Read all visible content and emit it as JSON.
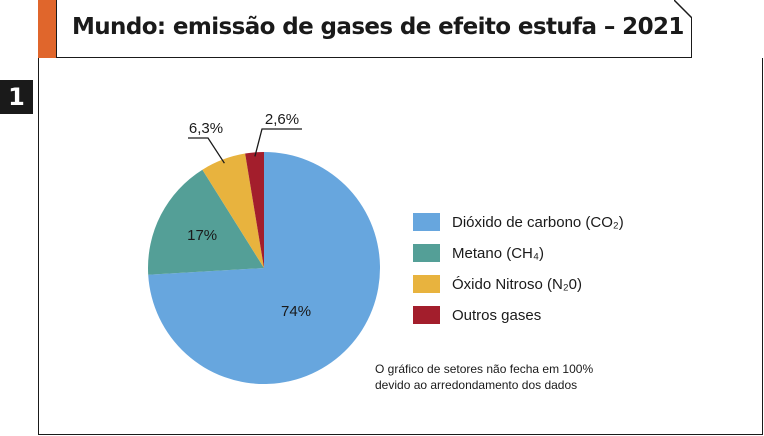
{
  "chart_data": {
    "type": "pie",
    "title": "Mundo: emissão de gases de efeito estufa – 2021",
    "categories": [
      "Dióxido de carbono (CO₂)",
      "Metano (CH₄)",
      "Óxido Nitroso (N₂0)",
      "Outros gases"
    ],
    "values": [
      74,
      17,
      6.3,
      2.6
    ],
    "data_labels": [
      "74%",
      "17%",
      "6,3%",
      "2,6%"
    ],
    "colors": [
      "#67a6de",
      "#549f97",
      "#e8b33e",
      "#a31e2c"
    ],
    "legend_position": "right"
  },
  "header": {
    "number": "1"
  },
  "note": {
    "line1": "O gráfico de setores não fecha em 100%",
    "line2": "devido ao arredondamento dos dados"
  }
}
